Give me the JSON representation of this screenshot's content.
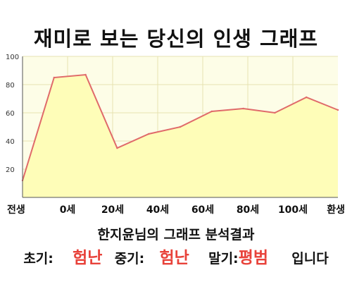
{
  "page_title": "재미로 보는 당신의 인생 그래프",
  "chart_data": {
    "type": "area",
    "title": "재미로 보는 당신의 인생 그래프",
    "x_labels": [
      "전생",
      "0세",
      "20세",
      "40세",
      "60세",
      "80세",
      "100세",
      "환생"
    ],
    "y_ticks": [
      "100",
      "80",
      "60",
      "40",
      "20"
    ],
    "ylim": [
      0,
      100
    ],
    "grid": true,
    "values": [
      12,
      85,
      87,
      35,
      45,
      50,
      61,
      63,
      60,
      71,
      62
    ],
    "colors": {
      "line": "#e06a6a",
      "fill": "#fefdb8",
      "plot_bg": "#fdfde7",
      "grid": "#e6e2b0"
    }
  },
  "result": {
    "title": "한지윤님의 그래프 분석결과",
    "early_label": "초기:",
    "early_value": "험난",
    "middle_label": "중기:",
    "middle_value": "험난",
    "late_label": "말기:",
    "late_value": "평범",
    "suffix": "입니다",
    "accent_color": "#e8423a"
  }
}
